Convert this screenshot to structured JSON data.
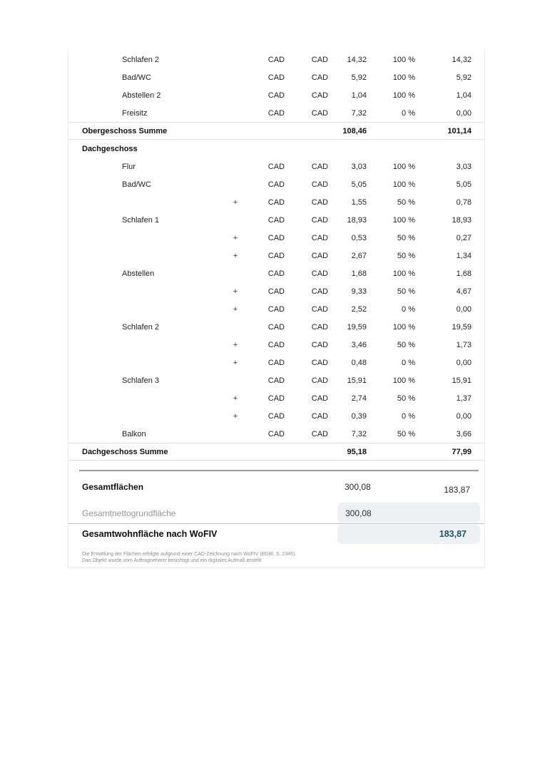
{
  "document": {
    "colors": {
      "accent_value": "#1a5268",
      "highlight_bg": "#edf1f6",
      "muted_label": "#969696"
    },
    "table": {
      "sections": [
        {
          "rows": [
            {
              "label": "Schlafen 2",
              "plus": "",
              "m1": "CAD",
              "m2": "CAD",
              "area": "14,32",
              "pct": "100 %",
              "result": "14,32"
            },
            {
              "label": "Bad/WC",
              "plus": "",
              "m1": "CAD",
              "m2": "CAD",
              "area": "5,92",
              "pct": "100 %",
              "result": "5,92"
            },
            {
              "label": "Abstellen 2",
              "plus": "",
              "m1": "CAD",
              "m2": "CAD",
              "area": "1,04",
              "pct": "100 %",
              "result": "1,04"
            },
            {
              "label": "Freisitz",
              "plus": "",
              "m1": "CAD",
              "m2": "CAD",
              "area": "7,32",
              "pct": "0 %",
              "result": "0,00"
            }
          ],
          "sum": {
            "label": "Obergeschoss Summe",
            "area": "108,46",
            "result": "101,14"
          }
        },
        {
          "header": "Dachgeschoss",
          "rows": [
            {
              "label": "Flur",
              "plus": "",
              "m1": "CAD",
              "m2": "CAD",
              "area": "3,03",
              "pct": "100 %",
              "result": "3,03"
            },
            {
              "label": "Bad/WC",
              "plus": "",
              "m1": "CAD",
              "m2": "CAD",
              "area": "5,05",
              "pct": "100 %",
              "result": "5,05"
            },
            {
              "label": "",
              "plus": "+",
              "m1": "CAD",
              "m2": "CAD",
              "area": "1,55",
              "pct": "50 %",
              "result": "0,78"
            },
            {
              "label": "Schlafen 1",
              "plus": "",
              "m1": "CAD",
              "m2": "CAD",
              "area": "18,93",
              "pct": "100 %",
              "result": "18,93"
            },
            {
              "label": "",
              "plus": "+",
              "m1": "CAD",
              "m2": "CAD",
              "area": "0,53",
              "pct": "50 %",
              "result": "0,27"
            },
            {
              "label": "",
              "plus": "+",
              "m1": "CAD",
              "m2": "CAD",
              "area": "2,67",
              "pct": "50 %",
              "result": "1,34"
            },
            {
              "label": "Abstellen",
              "plus": "",
              "m1": "CAD",
              "m2": "CAD",
              "area": "1,68",
              "pct": "100 %",
              "result": "1,68"
            },
            {
              "label": "",
              "plus": "+",
              "m1": "CAD",
              "m2": "CAD",
              "area": "9,33",
              "pct": "50 %",
              "result": "4,67"
            },
            {
              "label": "",
              "plus": "+",
              "m1": "CAD",
              "m2": "CAD",
              "area": "2,52",
              "pct": "0 %",
              "result": "0,00"
            },
            {
              "label": "Schlafen 2",
              "plus": "",
              "m1": "CAD",
              "m2": "CAD",
              "area": "19,59",
              "pct": "100 %",
              "result": "19,59"
            },
            {
              "label": "",
              "plus": "+",
              "m1": "CAD",
              "m2": "CAD",
              "area": "3,46",
              "pct": "50 %",
              "result": "1,73"
            },
            {
              "label": "",
              "plus": "+",
              "m1": "CAD",
              "m2": "CAD",
              "area": "0,48",
              "pct": "0 %",
              "result": "0,00"
            },
            {
              "label": "Schlafen 3",
              "plus": "",
              "m1": "CAD",
              "m2": "CAD",
              "area": "15,91",
              "pct": "100 %",
              "result": "15,91"
            },
            {
              "label": "",
              "plus": "+",
              "m1": "CAD",
              "m2": "CAD",
              "area": "2,74",
              "pct": "50 %",
              "result": "1,37"
            },
            {
              "label": "",
              "plus": "+",
              "m1": "CAD",
              "m2": "CAD",
              "area": "0,39",
              "pct": "0 %",
              "result": "0,00"
            },
            {
              "label": "Balkon",
              "plus": "",
              "m1": "CAD",
              "m2": "CAD",
              "area": "7,32",
              "pct": "50 %",
              "result": "3,66"
            }
          ],
          "sum": {
            "label": "Dachgeschoss Summe",
            "area": "95,18",
            "result": "77,99"
          }
        }
      ]
    },
    "totals": {
      "gesamtflaechen": {
        "label": "Gesamtflächen",
        "area": "300,08",
        "result": "183,87"
      },
      "nettogrundflaeche": {
        "label": "Gesamtnettogrundfläche",
        "value": "300,08"
      },
      "wohnflaeche": {
        "label": "Gesamtwohnfläche nach WoFIV",
        "value": "183,87"
      }
    },
    "footnote": {
      "line1": "Die Ermittlung der Flächen erfolgte aufgrund einer CAD-Zeichnung nach WoFIV (BGBl. S. 2346).",
      "line2": "Das Objekt wurde vom Auftragnehmer besichtigt und ein digitales Aufmaß erstellt"
    }
  }
}
